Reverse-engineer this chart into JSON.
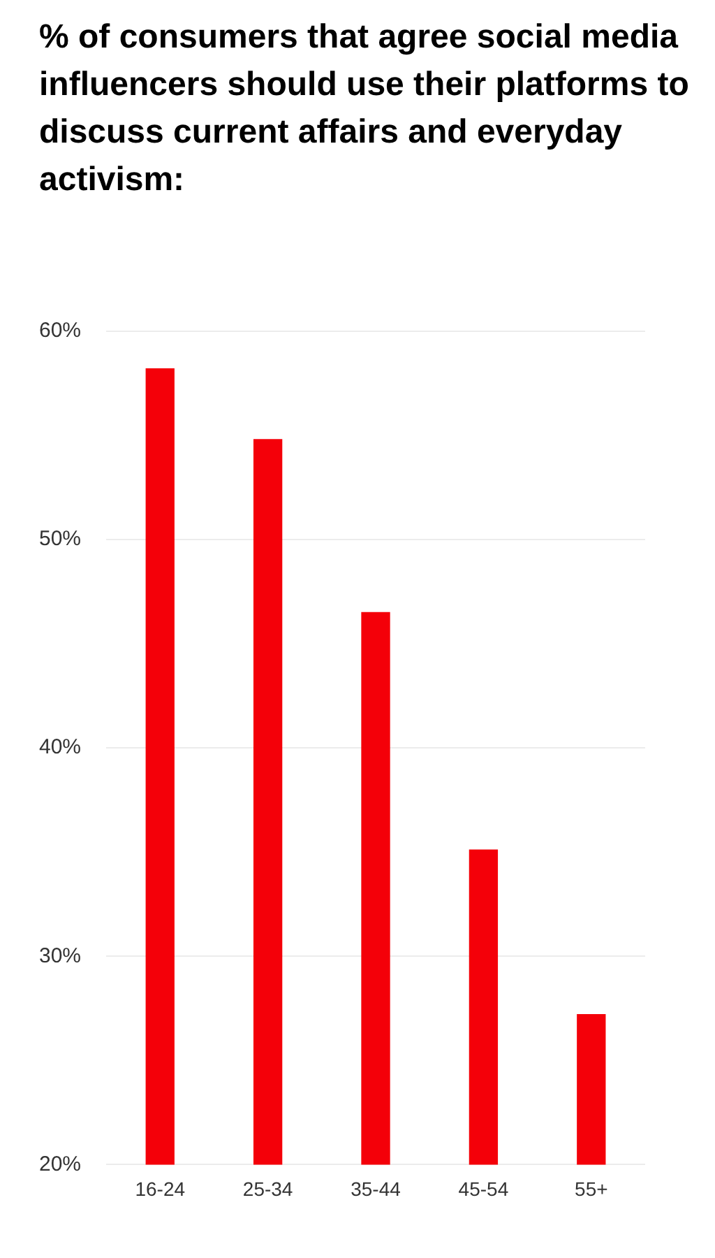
{
  "chart_data": {
    "type": "bar",
    "title": "% of consumers that agree social media influencers should use their platforms to discuss current affairs and everyday activism:",
    "categories": [
      "16-24",
      "25-34",
      "35-44",
      "45-54",
      "55+"
    ],
    "values": [
      58.2,
      54.8,
      46.5,
      35.1,
      27.2
    ],
    "color": "#f40009",
    "ylim": [
      20,
      60
    ],
    "yticks": [
      {
        "value": 20,
        "label": "20%"
      },
      {
        "value": 30,
        "label": "30%"
      },
      {
        "value": 40,
        "label": "40%"
      },
      {
        "value": 50,
        "label": "50%"
      },
      {
        "value": 60,
        "label": "60%"
      }
    ],
    "grid": "y"
  }
}
